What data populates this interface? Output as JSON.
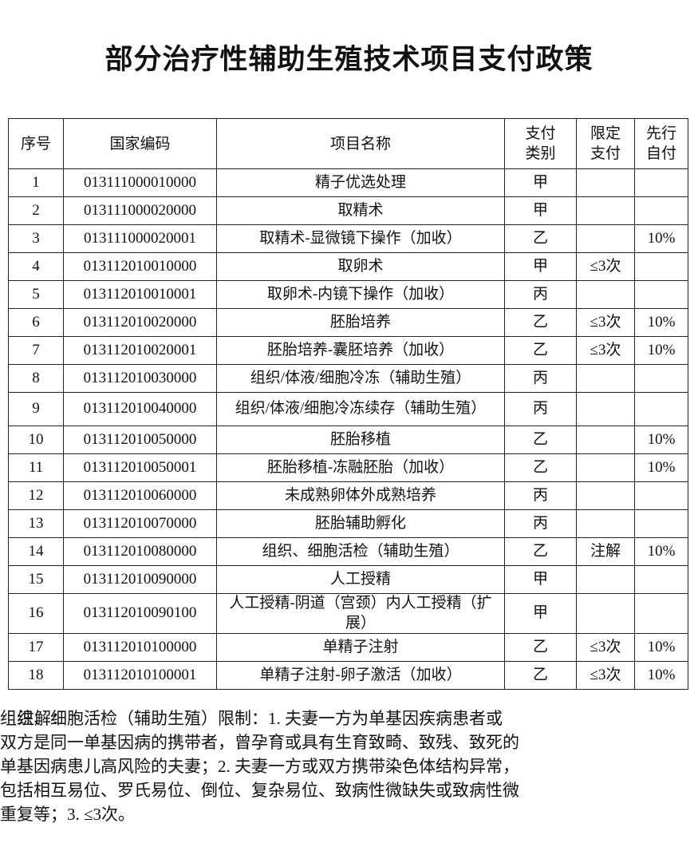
{
  "title": "部分治疗性辅助生殖技术项目支付政策",
  "table": {
    "header": [
      "序号",
      "国家编码",
      "项目名称",
      "支付\n类别",
      "限定\n支付",
      "先行\n自付"
    ],
    "rows": [
      [
        "1",
        "013111000010000",
        "精子优选处理",
        "甲",
        null,
        null
      ],
      [
        "2",
        "013111000020000",
        "取精术",
        "甲",
        null,
        null
      ],
      [
        "3",
        "013111000020001",
        "取精术-显微镜下操作（加收）",
        "乙",
        null,
        "10%"
      ],
      [
        "4",
        "013112010010000",
        "取卵术",
        "甲",
        "≤3次",
        null
      ],
      [
        "5",
        "013112010010001",
        "取卵术-内镜下操作（加收）",
        "丙",
        null,
        null
      ],
      [
        "6",
        "013112010020000",
        "胚胎培养",
        "乙",
        "≤3次",
        "10%"
      ],
      [
        "7",
        "013112010020001",
        "胚胎培养-囊胚培养（加收）",
        "乙",
        "≤3次",
        "10%"
      ],
      [
        "8",
        "013112010030000",
        "组织/体液/细胞冷冻（辅助生殖）",
        "丙",
        null,
        null
      ],
      [
        "9",
        "013112010040000",
        "组织/体液/细胞冷冻续存（辅助生殖）",
        "丙",
        null,
        null
      ],
      [
        "10",
        "013112010050000",
        "胚胎移植",
        "乙",
        null,
        "10%"
      ],
      [
        "11",
        "013112010050001",
        "胚胎移植-冻融胚胎（加收）",
        "乙",
        null,
        "10%"
      ],
      [
        "12",
        "013112010060000",
        "未成熟卵体外成熟培养",
        "丙",
        null,
        null
      ],
      [
        "13",
        "013112010070000",
        "胚胎辅助孵化",
        "丙",
        null,
        null
      ],
      [
        "14",
        "013112010080000",
        "组织、细胞活检（辅助生殖）",
        "乙",
        "注解",
        "10%"
      ],
      [
        "15",
        "013112010090000",
        "人工授精",
        "甲",
        null,
        null
      ],
      [
        "16",
        "013112010090100",
        "人工授精-阴道（宫颈）内人工授精（扩展）",
        "甲",
        null,
        null
      ],
      [
        "17",
        "013112010100000",
        "单精子注射",
        "乙",
        "≤3次",
        "10%"
      ],
      [
        "18",
        "013112010100001",
        "单精子注射-卵子激活（加收）",
        "乙",
        "≤3次",
        "10%"
      ]
    ]
  },
  "note": {
    "label": "注解：",
    "lines": [
      "组织、细胞活检（辅助生殖）限制：1. 夫妻一方为单基因疾病患者或",
      "双方是同一单基因病的携带者，曾孕育或具有生育致畸、致残、致死的",
      "单基因病患儿高风险的夫妻；2. 夫妻一方或双方携带染色体结构异常，",
      "包括相互易位、罗氏易位、倒位、复杂易位、致病性微缺失或致病性微",
      "重复等；3. ≤3次。"
    ]
  }
}
